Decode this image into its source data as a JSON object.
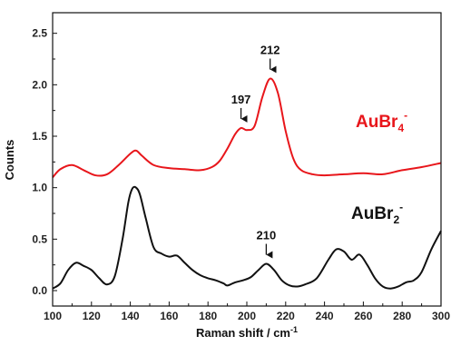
{
  "chart_data": {
    "type": "line",
    "title": "",
    "xlabel": "Raman shift / cm",
    "xlabel_superscript": "-1",
    "ylabel": "Counts",
    "xlim": [
      100,
      300
    ],
    "ylim": [
      -0.15,
      2.7
    ],
    "xticks": [
      100,
      120,
      140,
      160,
      180,
      200,
      220,
      240,
      260,
      280,
      300
    ],
    "yticks": [
      0.0,
      0.5,
      1.0,
      1.5,
      2.0,
      2.5
    ],
    "xtick_labels": [
      "100",
      "120",
      "140",
      "160",
      "180",
      "200",
      "220",
      "240",
      "260",
      "280",
      "300"
    ],
    "ytick_labels": [
      "0.0",
      "0.5",
      "1.0",
      "1.5",
      "2.0",
      "2.5"
    ],
    "grid": false,
    "legend": "none",
    "series": [
      {
        "name": "AuBr4-",
        "label_base": "AuBr",
        "label_sub": "4",
        "label_sup": "-",
        "color": "#e8161b",
        "x": [
          100,
          104,
          110,
          116,
          122,
          128,
          134,
          140,
          143,
          146,
          152,
          160,
          168,
          176,
          182,
          186,
          190,
          194,
          197,
          200,
          204,
          208,
          212,
          216,
          220,
          224,
          228,
          234,
          240,
          250,
          260,
          270,
          280,
          290,
          300
        ],
        "y": [
          1.1,
          1.18,
          1.22,
          1.17,
          1.12,
          1.13,
          1.22,
          1.33,
          1.36,
          1.31,
          1.22,
          1.19,
          1.18,
          1.17,
          1.2,
          1.26,
          1.38,
          1.52,
          1.58,
          1.56,
          1.6,
          1.88,
          2.06,
          1.92,
          1.55,
          1.28,
          1.17,
          1.13,
          1.12,
          1.13,
          1.14,
          1.13,
          1.17,
          1.2,
          1.24
        ]
      },
      {
        "name": "AuBr2-",
        "label_base": "AuBr",
        "label_sub": "2",
        "label_sup": "-",
        "color": "#111111",
        "x": [
          100,
          104,
          108,
          112,
          116,
          120,
          124,
          128,
          132,
          136,
          139,
          141,
          143,
          145,
          148,
          152,
          156,
          160,
          164,
          168,
          172,
          176,
          180,
          184,
          188,
          190,
          194,
          198,
          202,
          206,
          210,
          214,
          218,
          222,
          226,
          230,
          236,
          242,
          246,
          250,
          254,
          258,
          262,
          266,
          270,
          274,
          278,
          282,
          286,
          290,
          295,
          300
        ],
        "y": [
          0.02,
          0.07,
          0.2,
          0.27,
          0.24,
          0.2,
          0.12,
          0.06,
          0.14,
          0.5,
          0.86,
          0.99,
          1.0,
          0.93,
          0.7,
          0.42,
          0.36,
          0.33,
          0.34,
          0.27,
          0.2,
          0.15,
          0.12,
          0.1,
          0.07,
          0.05,
          0.08,
          0.1,
          0.13,
          0.2,
          0.26,
          0.2,
          0.1,
          0.05,
          0.04,
          0.06,
          0.12,
          0.3,
          0.4,
          0.38,
          0.3,
          0.35,
          0.25,
          0.12,
          0.04,
          0.02,
          0.04,
          0.08,
          0.1,
          0.18,
          0.4,
          0.58
        ]
      }
    ],
    "annotations": [
      {
        "text": "197",
        "x": 197,
        "y": 1.58,
        "arrow": true
      },
      {
        "text": "212",
        "x": 212,
        "y": 2.06,
        "arrow": true
      },
      {
        "text": "210",
        "x": 210,
        "y": 0.26,
        "arrow": true
      }
    ]
  }
}
